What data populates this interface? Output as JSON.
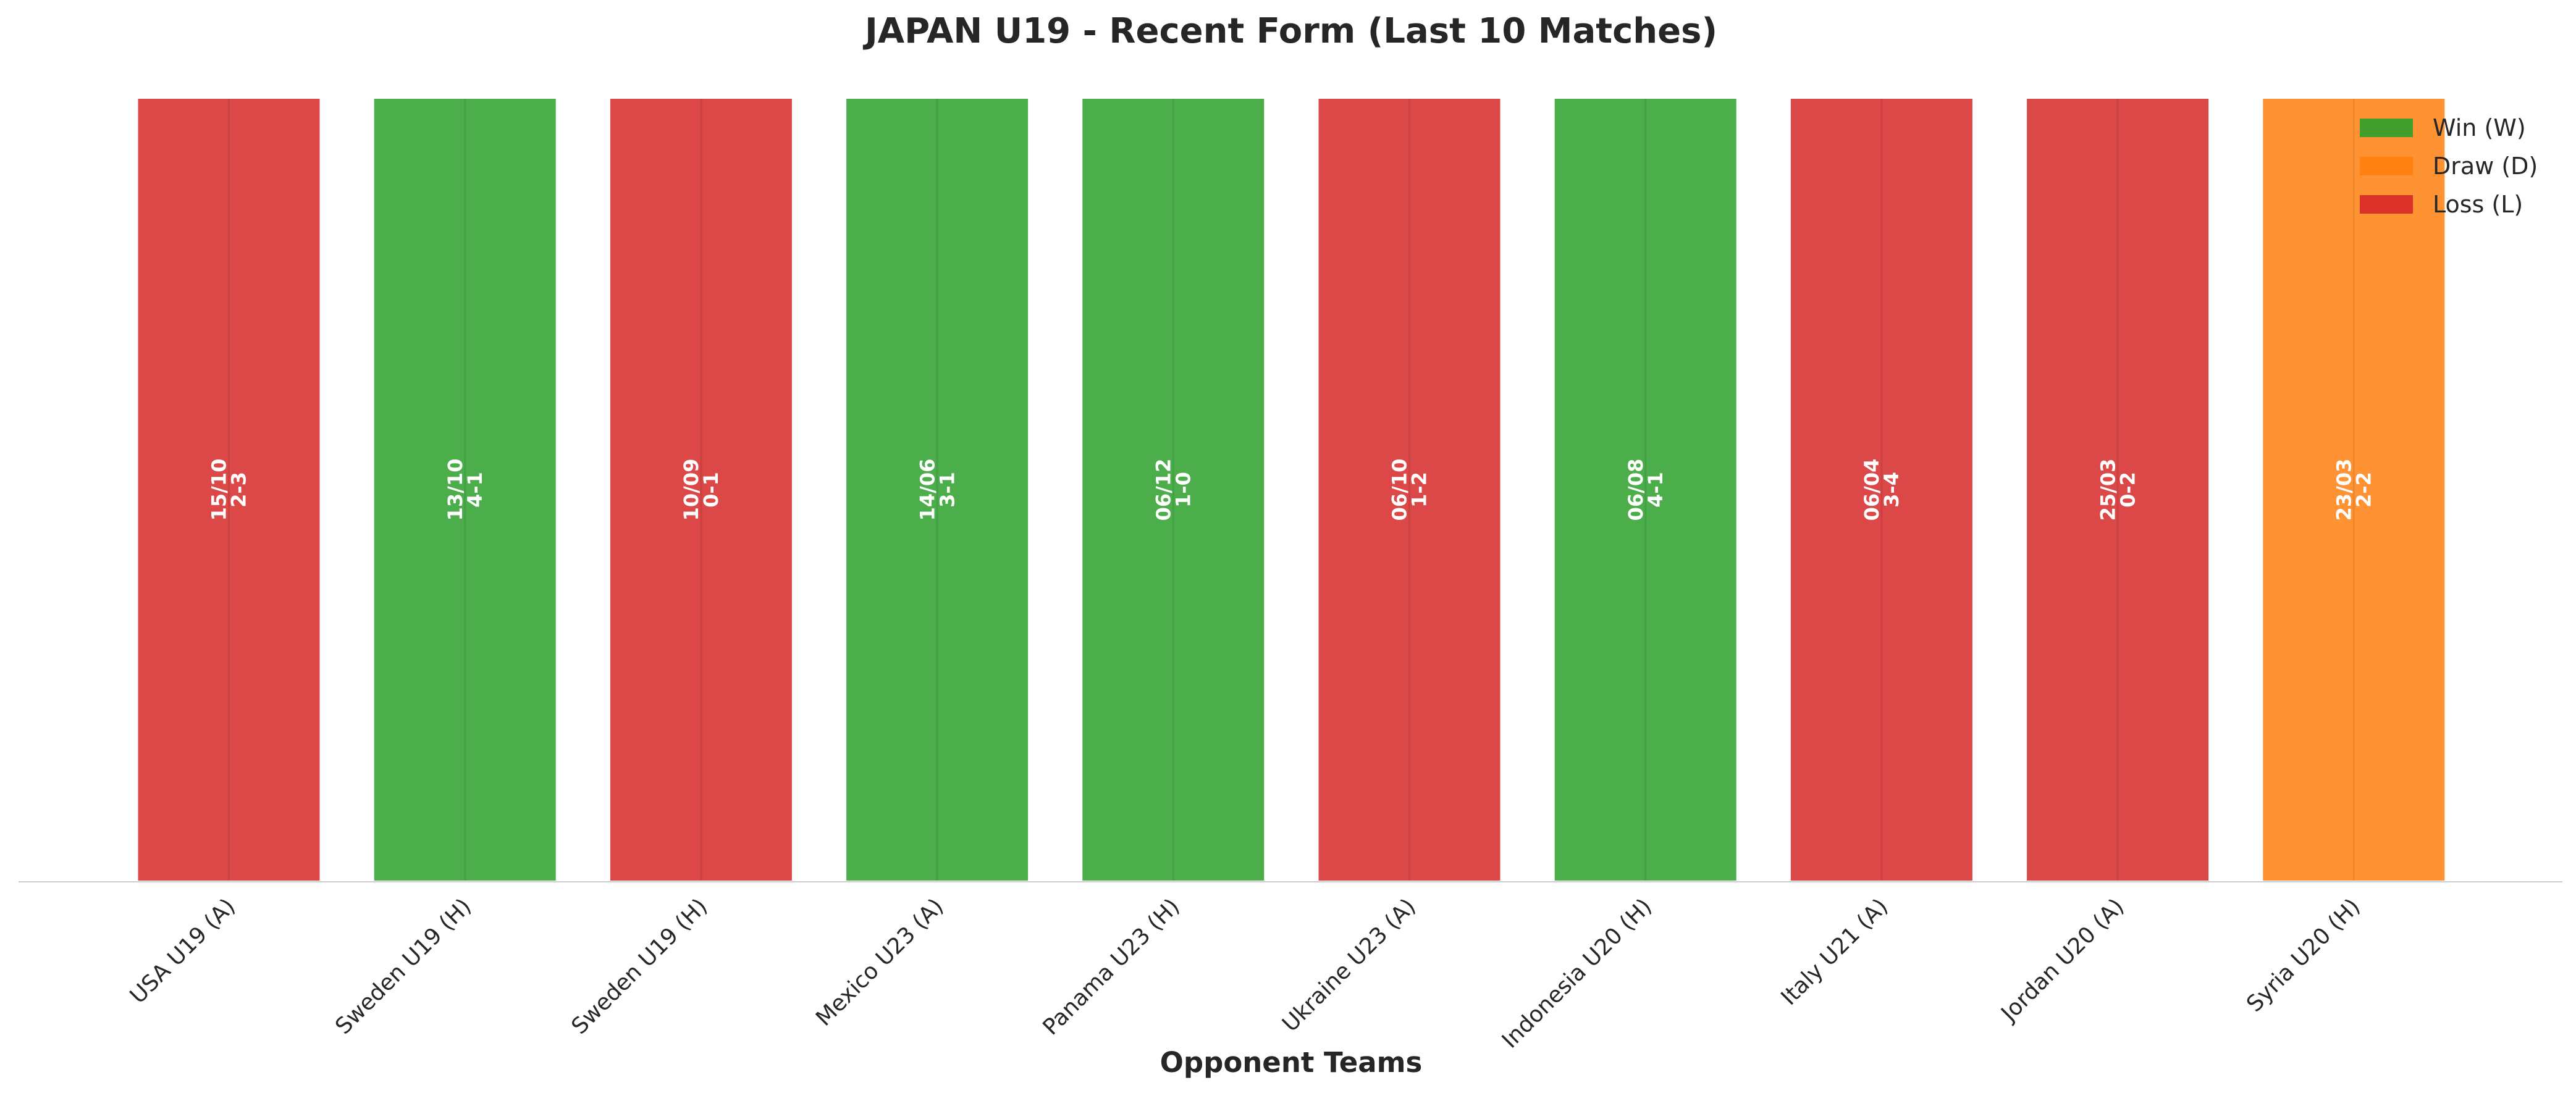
{
  "chart_data": {
    "type": "bar",
    "title": "JAPAN U19 - Recent Form (Last 10 Matches)",
    "xlabel": "Opponent Teams",
    "ylabel": "",
    "ylim": [
      0,
      1
    ],
    "grid": false,
    "legend_position": "top-right",
    "categories": [
      "USA U19 (A)",
      "Sweden U19 (H)",
      "Sweden U19 (H)",
      "Mexico U23 (A)",
      "Panama U23 (H)",
      "Ukraine U23 (A)",
      "Indonesia U20 (H)",
      "Italy U21 (A)",
      "Jordan U20 (A)",
      "Syria U20 (H)"
    ],
    "values": [
      1,
      1,
      1,
      1,
      1,
      1,
      1,
      1,
      1,
      1
    ],
    "results": [
      "L",
      "W",
      "L",
      "W",
      "W",
      "L",
      "W",
      "L",
      "L",
      "D"
    ],
    "dates": [
      "15/10",
      "13/10",
      "10/09",
      "14/06",
      "06/12",
      "06/10",
      "06/08",
      "06/04",
      "25/03",
      "23/03"
    ],
    "scores": [
      "2-3",
      "4-1",
      "0-1",
      "3-1",
      "1-0",
      "1-2",
      "4-1",
      "3-4",
      "0-2",
      "2-2"
    ],
    "legend": [
      {
        "key": "W",
        "label": "Win (W)",
        "color": "#2ca02c"
      },
      {
        "key": "D",
        "label": "Draw (D)",
        "color": "#ff7f0e"
      },
      {
        "key": "L",
        "label": "Loss (L)",
        "color": "#d62728"
      }
    ],
    "colors": {
      "W": "#2ca02c",
      "D": "#ff7f0e",
      "L": "#d62728"
    }
  }
}
